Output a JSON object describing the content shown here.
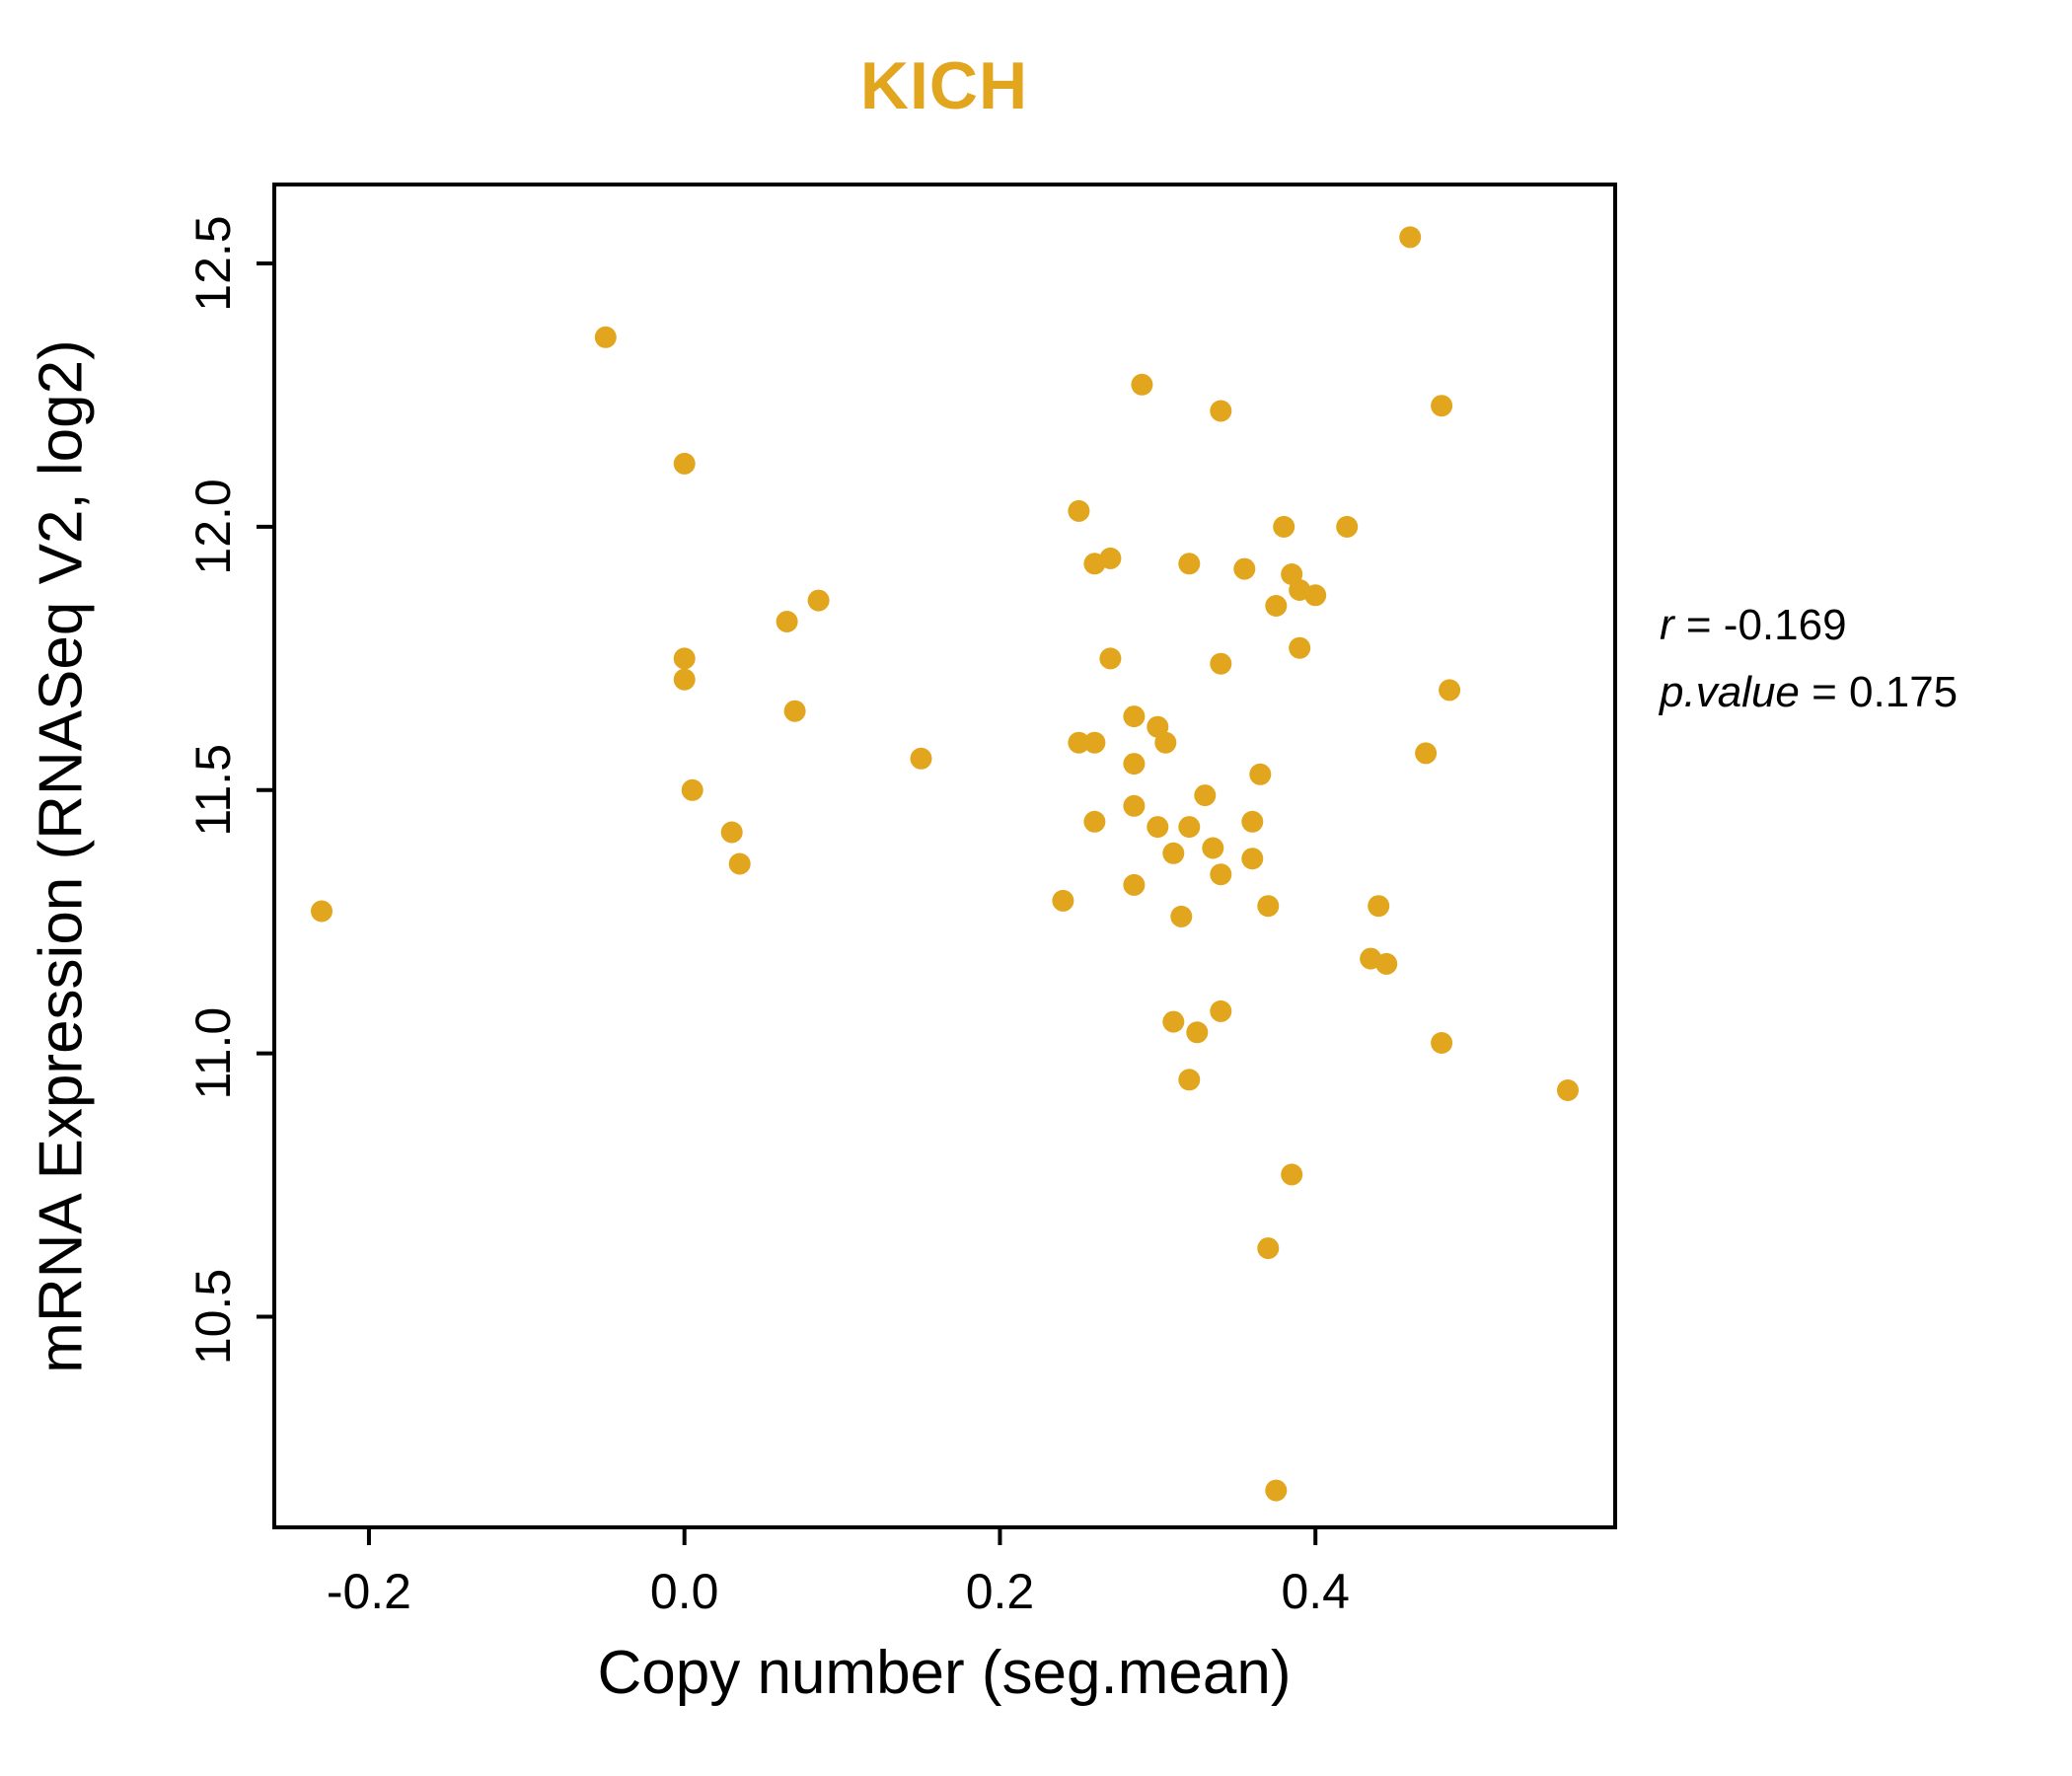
{
  "chart_data": {
    "type": "scatter",
    "title": "KICH",
    "xlabel": "Copy number (seg.mean)",
    "ylabel": "mRNA Expression (RNASeq V2, log2)",
    "xlim": [
      -0.26,
      0.59
    ],
    "ylim": [
      10.1,
      12.65
    ],
    "xticks": [
      -0.2,
      0.0,
      0.2,
      0.4
    ],
    "xtick_labels": [
      "-0.2",
      "0.0",
      "0.2",
      "0.4"
    ],
    "yticks": [
      10.5,
      11.0,
      11.5,
      12.0,
      12.5
    ],
    "ytick_labels": [
      "10.5",
      "11.0",
      "11.5",
      "12.0",
      "12.5"
    ],
    "grid": false,
    "legend": "none",
    "point_color": "#E2A51E",
    "title_color": "#E2A51E",
    "annotation": {
      "r_label": "r",
      "r_eq": " = -0.169",
      "p_label": "p.value",
      "p_eq": " = 0.175"
    },
    "points": [
      [
        -0.23,
        11.27
      ],
      [
        -0.05,
        12.36
      ],
      [
        0.0,
        12.12
      ],
      [
        0.0,
        11.75
      ],
      [
        0.0,
        11.71
      ],
      [
        0.005,
        11.5
      ],
      [
        0.03,
        11.42
      ],
      [
        0.035,
        11.36
      ],
      [
        0.065,
        11.82
      ],
      [
        0.07,
        11.65
      ],
      [
        0.085,
        11.86
      ],
      [
        0.15,
        11.56
      ],
      [
        0.25,
        12.03
      ],
      [
        0.26,
        11.93
      ],
      [
        0.27,
        11.94
      ],
      [
        0.29,
        12.27
      ],
      [
        0.27,
        11.75
      ],
      [
        0.25,
        11.59
      ],
      [
        0.26,
        11.59
      ],
      [
        0.285,
        11.64
      ],
      [
        0.3,
        11.62
      ],
      [
        0.305,
        11.59
      ],
      [
        0.285,
        11.55
      ],
      [
        0.285,
        11.47
      ],
      [
        0.26,
        11.44
      ],
      [
        0.3,
        11.43
      ],
      [
        0.24,
        11.29
      ],
      [
        0.285,
        11.32
      ],
      [
        0.31,
        11.38
      ],
      [
        0.32,
        11.43
      ],
      [
        0.315,
        11.26
      ],
      [
        0.32,
        11.93
      ],
      [
        0.34,
        12.22
      ],
      [
        0.34,
        11.74
      ],
      [
        0.33,
        11.49
      ],
      [
        0.335,
        11.39
      ],
      [
        0.34,
        11.34
      ],
      [
        0.355,
        11.92
      ],
      [
        0.36,
        11.44
      ],
      [
        0.36,
        11.37
      ],
      [
        0.365,
        11.53
      ],
      [
        0.37,
        11.28
      ],
      [
        0.38,
        12.0
      ],
      [
        0.385,
        11.91
      ],
      [
        0.375,
        11.85
      ],
      [
        0.39,
        11.88
      ],
      [
        0.39,
        11.77
      ],
      [
        0.4,
        11.87
      ],
      [
        0.42,
        12.0
      ],
      [
        0.31,
        11.06
      ],
      [
        0.325,
        11.04
      ],
      [
        0.32,
        10.95
      ],
      [
        0.34,
        11.08
      ],
      [
        0.385,
        10.77
      ],
      [
        0.37,
        10.63
      ],
      [
        0.375,
        10.17
      ],
      [
        0.435,
        11.18
      ],
      [
        0.445,
        11.17
      ],
      [
        0.44,
        11.28
      ],
      [
        0.46,
        12.55
      ],
      [
        0.48,
        12.23
      ],
      [
        0.485,
        11.69
      ],
      [
        0.47,
        11.57
      ],
      [
        0.48,
        11.02
      ],
      [
        0.56,
        10.93
      ]
    ]
  }
}
